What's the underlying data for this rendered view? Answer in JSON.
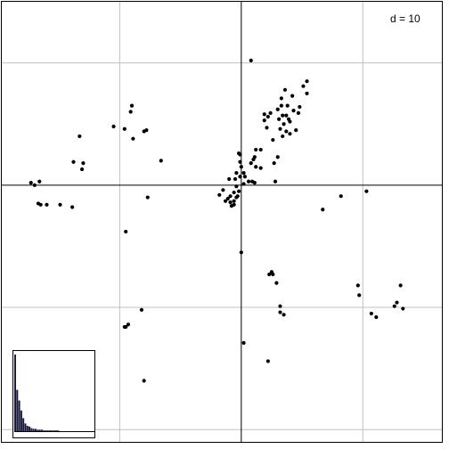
{
  "chart_data": {
    "type": "scatter",
    "scale_label": "d = 10",
    "grid": true,
    "grid_step": 10,
    "xlim": [
      -19.7,
      16.5
    ],
    "ylim": [
      -21,
      15
    ],
    "points": [
      [
        0.8,
        10.2
      ],
      [
        3.3,
        7.1
      ],
      [
        3.6,
        7.8
      ],
      [
        5.1,
        8.1
      ],
      [
        5.4,
        7.5
      ],
      [
        4.2,
        7.3
      ],
      [
        3.8,
        6.5
      ],
      [
        4.3,
        6.1
      ],
      [
        2.2,
        5.6
      ],
      [
        2.4,
        5.9
      ],
      [
        3.0,
        6.2
      ],
      [
        3.9,
        5.4
      ],
      [
        4.7,
        5.9
      ],
      [
        4.8,
        6.4
      ],
      [
        3.5,
        5.0
      ],
      [
        3.2,
        4.6
      ],
      [
        3.4,
        5.7
      ],
      [
        4.0,
        4.2
      ],
      [
        3.7,
        4.4
      ],
      [
        4.5,
        4.5
      ],
      [
        1.9,
        5.3
      ],
      [
        3.1,
        5.4
      ],
      [
        2.1,
        4.7
      ],
      [
        4.0,
        5.2
      ],
      [
        3.4,
        4.0
      ],
      [
        2.6,
        3.7
      ],
      [
        1.2,
        1.5
      ],
      [
        1.6,
        1.4
      ],
      [
        1.2,
        2.9
      ],
      [
        1.0,
        2.1
      ],
      [
        -0.2,
        2.6
      ],
      [
        -0.1,
        2.5
      ],
      [
        -0.1,
        1.9
      ],
      [
        0.0,
        1.5
      ],
      [
        0.2,
        1.0
      ],
      [
        -0.4,
        1.0
      ],
      [
        -0.1,
        0.7
      ],
      [
        -0.5,
        0.5
      ],
      [
        -0.4,
        -0.1
      ],
      [
        -1.0,
        0.5
      ],
      [
        -0.2,
        -0.5
      ],
      [
        -0.6,
        -0.6
      ],
      [
        -0.9,
        -0.9
      ],
      [
        -0.9,
        -1.4
      ],
      [
        -0.6,
        -1.6
      ],
      [
        -1.3,
        -1.3
      ],
      [
        -0.8,
        -1.7
      ],
      [
        -0.6,
        -1.3
      ],
      [
        -0.3,
        -0.9
      ],
      [
        0.2,
        0.1
      ],
      [
        0.6,
        0.3
      ],
      [
        0.9,
        0.3
      ],
      [
        1.1,
        0.2
      ],
      [
        2.8,
        0.3
      ],
      [
        -1.5,
        -0.4
      ],
      [
        -1.8,
        -0.8
      ],
      [
        -8.0,
        4.4
      ],
      [
        -7.8,
        4.5
      ],
      [
        -9.6,
        4.6
      ],
      [
        -8.9,
        3.8
      ],
      [
        -9.1,
        6.0
      ],
      [
        -9.0,
        6.5
      ],
      [
        -10.5,
        4.8
      ],
      [
        -13.3,
        4.0
      ],
      [
        -13.0,
        1.8
      ],
      [
        -13.8,
        1.9
      ],
      [
        -13.1,
        1.3
      ],
      [
        -6.6,
        2.0
      ],
      [
        -17.3,
        0.2
      ],
      [
        -16.6,
        0.3
      ],
      [
        -17.0,
        0.0
      ],
      [
        -16.7,
        -1.5
      ],
      [
        -16.5,
        -1.6
      ],
      [
        -14.9,
        -1.6
      ],
      [
        -13.9,
        -1.8
      ],
      [
        -7.7,
        -1.0
      ],
      [
        -9.5,
        -3.8
      ],
      [
        -16.0,
        -1.6
      ],
      [
        0.0,
        -5.5
      ],
      [
        2.3,
        -7.3
      ],
      [
        2.5,
        -7.1
      ],
      [
        2.6,
        -7.3
      ],
      [
        2.9,
        -8.0
      ],
      [
        3.2,
        -9.9
      ],
      [
        3.2,
        -10.4
      ],
      [
        3.5,
        -10.6
      ],
      [
        6.7,
        -2.0
      ],
      [
        8.2,
        -0.9
      ],
      [
        10.3,
        -0.5
      ],
      [
        9.6,
        -8.2
      ],
      [
        9.7,
        -9.0
      ],
      [
        10.7,
        -10.5
      ],
      [
        11.1,
        -10.8
      ],
      [
        12.8,
        -9.6
      ],
      [
        12.6,
        -9.9
      ],
      [
        13.1,
        -8.2
      ],
      [
        13.3,
        -10.1
      ],
      [
        -8.2,
        -10.2
      ],
      [
        -9.3,
        -11.4
      ],
      [
        -9.5,
        -11.6
      ],
      [
        -9.6,
        -11.6
      ],
      [
        0.2,
        -12.9
      ],
      [
        2.2,
        -14.4
      ],
      [
        -8.0,
        -16.0
      ],
      [
        2.7,
        1.8
      ],
      [
        1.6,
        2.9
      ],
      [
        1.1,
        2.3
      ],
      [
        3.0,
        2.3
      ],
      [
        1.9,
        5.8
      ],
      [
        3.7,
        5.7
      ],
      [
        5.4,
        8.5
      ],
      [
        3.3,
        6.5
      ],
      [
        0.8,
        1.8
      ],
      [
        0.3,
        0.7
      ],
      [
        -0.4,
        -1.0
      ],
      [
        -1.1,
        -1.1
      ]
    ],
    "eigenvalues": [
      100,
      54,
      40,
      27,
      17,
      10,
      7,
      6,
      4,
      3,
      3,
      2,
      2,
      2,
      1,
      1,
      1,
      1,
      1,
      1,
      1,
      1
    ]
  }
}
